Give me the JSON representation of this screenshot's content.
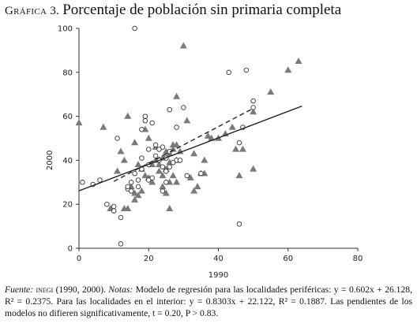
{
  "figure": {
    "label": "Gráfica 3.",
    "title": "Porcentaje de población sin primaria completa"
  },
  "note": {
    "source_label": "Fuente:",
    "source_org": "inegi",
    "source_years": "(1990, 2000).",
    "notes_label": "Notas:",
    "text": "Modelo de regresión para las localidades periféricas: y = 0.602x + 26.128, R² = 0.2375. Para las localidades en el interior: y = 0.8303x + 22.122, R² = 0.1887. Las pendientes de los modelos no difieren significativamente, t = 0.20, P > 0.83."
  },
  "chart_data": {
    "type": "scatter",
    "title": "",
    "xlabel": "1990",
    "ylabel": "2000",
    "xlim": [
      0,
      80
    ],
    "ylim": [
      0,
      100
    ],
    "xticks": [
      "0",
      "20",
      "40",
      "60",
      "80"
    ],
    "yticks": [
      "0",
      "20",
      "40",
      "60",
      "80",
      "100"
    ],
    "grid": false,
    "series": [
      {
        "marker": "triangle",
        "color": "#7a7a7a",
        "points": [
          [
            0,
            57
          ],
          [
            7,
            55
          ],
          [
            9,
            18
          ],
          [
            11,
            35
          ],
          [
            12,
            44
          ],
          [
            13,
            18
          ],
          [
            13,
            40
          ],
          [
            14,
            60
          ],
          [
            14,
            18
          ],
          [
            15,
            28
          ],
          [
            16,
            22
          ],
          [
            16,
            25
          ],
          [
            16,
            48
          ],
          [
            17,
            24
          ],
          [
            17,
            38
          ],
          [
            18,
            26
          ],
          [
            18,
            36
          ],
          [
            19,
            33
          ],
          [
            19,
            54
          ],
          [
            20,
            50
          ],
          [
            20,
            32
          ],
          [
            21,
            30
          ],
          [
            21,
            38
          ],
          [
            22,
            40
          ],
          [
            22,
            46
          ],
          [
            23,
            35
          ],
          [
            23,
            38
          ],
          [
            24,
            41
          ],
          [
            24,
            33
          ],
          [
            24,
            28
          ],
          [
            25,
            25
          ],
          [
            25,
            44
          ],
          [
            25,
            36
          ],
          [
            26,
            43
          ],
          [
            26,
            30
          ],
          [
            26,
            39
          ],
          [
            26,
            18
          ],
          [
            27,
            47
          ],
          [
            27,
            45
          ],
          [
            27,
            33
          ],
          [
            28,
            47
          ],
          [
            28,
            40
          ],
          [
            28,
            30
          ],
          [
            28,
            69
          ],
          [
            29,
            44
          ],
          [
            30,
            92
          ],
          [
            31,
            58
          ],
          [
            32,
            32
          ],
          [
            33,
            43
          ],
          [
            33,
            26
          ],
          [
            34,
            28
          ],
          [
            35,
            34
          ],
          [
            36,
            40
          ],
          [
            36,
            34
          ],
          [
            37,
            51
          ],
          [
            38,
            50
          ],
          [
            40,
            50
          ],
          [
            42,
            52
          ],
          [
            44,
            55
          ],
          [
            45,
            45
          ],
          [
            46,
            33
          ],
          [
            47,
            45
          ],
          [
            50,
            36
          ],
          [
            50,
            62
          ],
          [
            55,
            71
          ],
          [
            60,
            81
          ],
          [
            63,
            85
          ]
        ]
      },
      {
        "marker": "circle",
        "color": "#333333",
        "points": [
          [
            1,
            30
          ],
          [
            4,
            29
          ],
          [
            6,
            31
          ],
          [
            8,
            20
          ],
          [
            10,
            19
          ],
          [
            10,
            17
          ],
          [
            11,
            50
          ],
          [
            12,
            14
          ],
          [
            12,
            2
          ],
          [
            14,
            27
          ],
          [
            14,
            28
          ],
          [
            15,
            30
          ],
          [
            15,
            26
          ],
          [
            16,
            100
          ],
          [
            16,
            34
          ],
          [
            17,
            31
          ],
          [
            17,
            28
          ],
          [
            18,
            54
          ],
          [
            18,
            41
          ],
          [
            18,
            36
          ],
          [
            19,
            58
          ],
          [
            19,
            60
          ],
          [
            20,
            45
          ],
          [
            20,
            38
          ],
          [
            20,
            31
          ],
          [
            21,
            32
          ],
          [
            21,
            57
          ],
          [
            22,
            47
          ],
          [
            22,
            42
          ],
          [
            23,
            45
          ],
          [
            23,
            40
          ],
          [
            24,
            46
          ],
          [
            24,
            37
          ],
          [
            24,
            26
          ],
          [
            25,
            35
          ],
          [
            25,
            41
          ],
          [
            25,
            30
          ],
          [
            26,
            44
          ],
          [
            26,
            63
          ],
          [
            26,
            37
          ],
          [
            27,
            39
          ],
          [
            28,
            55
          ],
          [
            28,
            40
          ],
          [
            29,
            40
          ],
          [
            30,
            64
          ],
          [
            31,
            33
          ],
          [
            35,
            34
          ],
          [
            43,
            80
          ],
          [
            46,
            11
          ],
          [
            46,
            48
          ],
          [
            47,
            55
          ],
          [
            48,
            81
          ],
          [
            50,
            67
          ],
          [
            50,
            64
          ]
        ]
      }
    ],
    "fit_lines": [
      {
        "style": "solid",
        "x": [
          0,
          64
        ],
        "y": [
          26.128,
          64.66
        ]
      },
      {
        "style": "dashed",
        "x": [
          10,
          50
        ],
        "y": [
          30.4,
          63.6
        ]
      }
    ]
  }
}
